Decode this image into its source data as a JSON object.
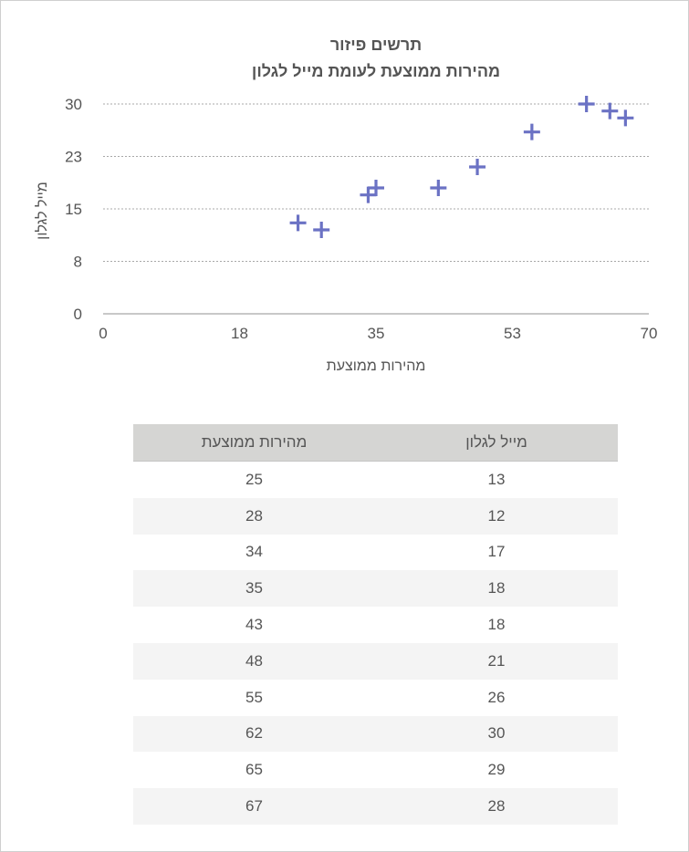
{
  "chart_data": {
    "type": "scatter",
    "title": "תרשים פיזור",
    "subtitle": "מהירות ממוצעת לעומת מייל לגלון",
    "xlabel": "מהירות ממוצעת",
    "ylabel": "מייל לגלון",
    "xlim": [
      0,
      70
    ],
    "ylim": [
      0,
      30
    ],
    "x_ticks": [
      0,
      17.5,
      35,
      52.5,
      70
    ],
    "x_tick_labels": [
      "0",
      "18",
      "35",
      "53",
      "70"
    ],
    "y_ticks": [
      0,
      7.5,
      15,
      22.5,
      30
    ],
    "y_tick_labels": [
      "0",
      "8",
      "15",
      "23",
      "30"
    ],
    "grid": true,
    "marker": "plus",
    "color": "#6b72c4",
    "series": [
      {
        "name": "מייל לגלון",
        "x": [
          25,
          28,
          34,
          35,
          43,
          48,
          55,
          62,
          65,
          67
        ],
        "y": [
          13,
          12,
          17,
          18,
          18,
          21,
          26,
          30,
          29,
          28
        ]
      }
    ]
  },
  "table": {
    "headers": {
      "speed": "מהירות ממוצעת",
      "mpg": "מייל לגלון"
    },
    "rows": [
      {
        "speed": "25",
        "mpg": "13"
      },
      {
        "speed": "28",
        "mpg": "12"
      },
      {
        "speed": "34",
        "mpg": "17"
      },
      {
        "speed": "35",
        "mpg": "18"
      },
      {
        "speed": "43",
        "mpg": "18"
      },
      {
        "speed": "48",
        "mpg": "21"
      },
      {
        "speed": "55",
        "mpg": "26"
      },
      {
        "speed": "62",
        "mpg": "30"
      },
      {
        "speed": "65",
        "mpg": "29"
      },
      {
        "speed": "67",
        "mpg": "28"
      }
    ]
  }
}
